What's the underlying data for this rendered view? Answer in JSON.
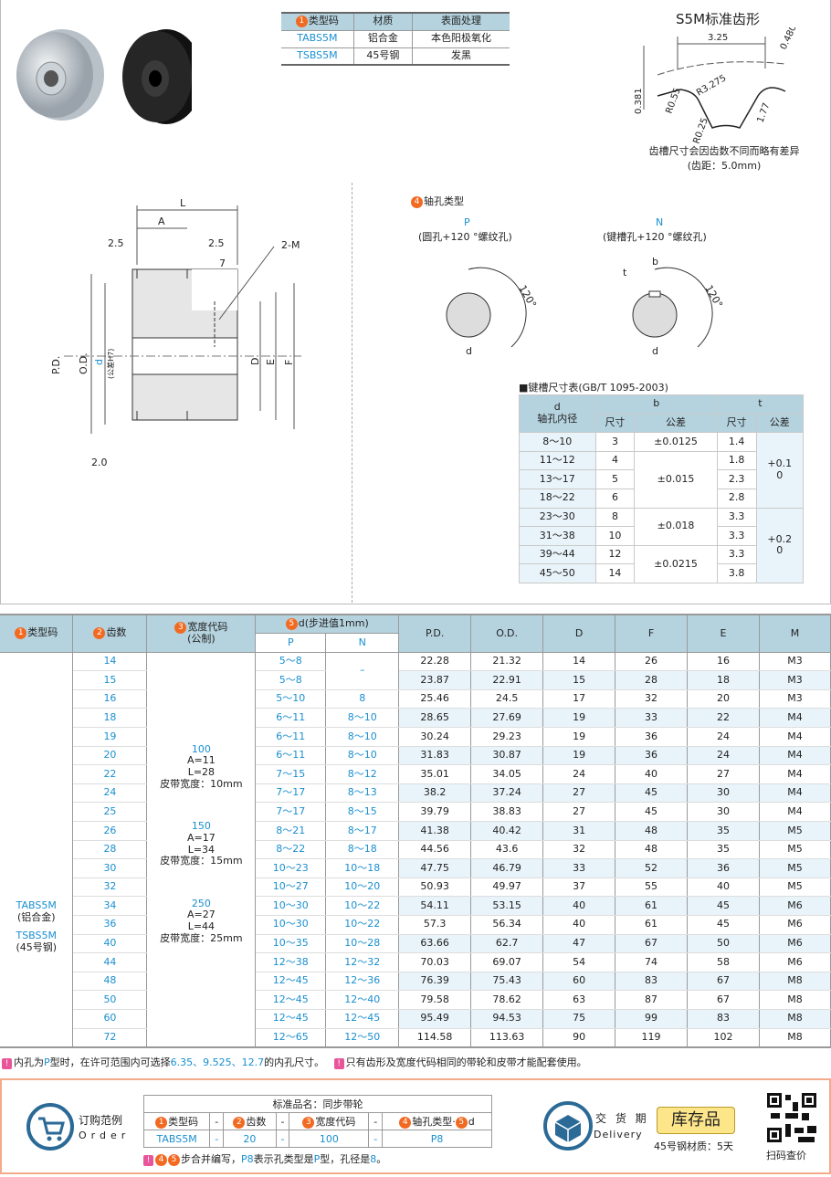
{
  "materials": {
    "headers": [
      "类型码",
      "材质",
      "表面处理"
    ],
    "rows": [
      [
        "TABS5M",
        "铝合金",
        "本色阳极氧化"
      ],
      [
        "TSBS5M",
        "45号钢",
        "发黑"
      ]
    ]
  },
  "tooth_profile": {
    "title": "S5M标准齿形",
    "dims": [
      "3.25",
      "0.480",
      "R3.275",
      "R0.55",
      "0.381",
      "1.77",
      "R0.25"
    ],
    "note1": "齿槽尺寸会因齿数不同而略有差异",
    "note2": "(齿距：5.0mm)"
  },
  "drawing": {
    "L": "L",
    "A": "A",
    "d25a": "2.5",
    "d25b": "2.5",
    "d7": "7",
    "m2": "2-M",
    "pd": "P.D.",
    "od": "O.D.",
    "d": "d",
    "h7": "(公差H7)",
    "D": "D",
    "E": "E",
    "F": "F",
    "d20": "2.0"
  },
  "bore": {
    "title": "轴孔类型",
    "p": "P",
    "p_desc": "(圆孔+120 °螺纹孔)",
    "n": "N",
    "n_desc": "(键槽孔+120 °螺纹孔)",
    "angle": "120°",
    "d": "d",
    "b": "b",
    "t": "t"
  },
  "keyway": {
    "title": "■键槽尺寸表(GB/T 1095-2003)",
    "h_d": "d",
    "h_dsub": "轴孔内径",
    "h_b": "b",
    "h_t": "t",
    "h_size": "尺寸",
    "h_tol": "公差",
    "rows": [
      [
        "8～10",
        "3",
        "1.4"
      ],
      [
        "11～12",
        "4",
        "1.8"
      ],
      [
        "13～17",
        "5",
        "2.3"
      ],
      [
        "18～22",
        "6",
        "2.8"
      ],
      [
        "23～30",
        "8",
        "3.3"
      ],
      [
        "31～38",
        "10",
        "3.3"
      ],
      [
        "39～44",
        "12",
        "3.3"
      ],
      [
        "45～50",
        "14",
        "3.8"
      ]
    ],
    "b_tol": [
      "±0.0125",
      "±0.015",
      "±0.018",
      "±0.0215"
    ],
    "t_tol": [
      "+0.1\n0",
      "+0.2\n0"
    ]
  },
  "main": {
    "headers": {
      "type": "类型码",
      "teeth": "齿数",
      "width": "宽度代码",
      "width_sub": "(公制)",
      "d": "d(步进值1mm)",
      "p": "P",
      "n": "N",
      "pd": "P.D.",
      "od": "O.D.",
      "D": "D",
      "F": "F",
      "E": "E",
      "M": "M"
    },
    "type_cell": [
      "TABS5M",
      "(铝合金)",
      "TSBS5M",
      "(45号钢)"
    ],
    "width_groups": [
      [
        "100",
        "A=11",
        "L=28",
        "皮带宽度：10mm"
      ],
      [
        "150",
        "A=17",
        "L=34",
        "皮带宽度：15mm"
      ],
      [
        "250",
        "A=27",
        "L=44",
        "皮带宽度：25mm"
      ]
    ],
    "rows": [
      [
        "14",
        "5～8",
        "–",
        "22.28",
        "21.32",
        "14",
        "26",
        "16",
        "M3"
      ],
      [
        "15",
        "5～8",
        "",
        "23.87",
        "22.91",
        "15",
        "28",
        "18",
        "M3"
      ],
      [
        "16",
        "5～10",
        "8",
        "25.46",
        "24.5",
        "17",
        "32",
        "20",
        "M3"
      ],
      [
        "18",
        "6～11",
        "8～10",
        "28.65",
        "27.69",
        "19",
        "33",
        "22",
        "M4"
      ],
      [
        "19",
        "6～11",
        "8～10",
        "30.24",
        "29.23",
        "19",
        "36",
        "24",
        "M4"
      ],
      [
        "20",
        "6～11",
        "8～10",
        "31.83",
        "30.87",
        "19",
        "36",
        "24",
        "M4"
      ],
      [
        "22",
        "7～15",
        "8～12",
        "35.01",
        "34.05",
        "24",
        "40",
        "27",
        "M4"
      ],
      [
        "24",
        "7～17",
        "8～13",
        "38.2",
        "37.24",
        "27",
        "45",
        "30",
        "M4"
      ],
      [
        "25",
        "7～17",
        "8～15",
        "39.79",
        "38.83",
        "27",
        "45",
        "30",
        "M4"
      ],
      [
        "26",
        "8～21",
        "8～17",
        "41.38",
        "40.42",
        "31",
        "48",
        "35",
        "M5"
      ],
      [
        "28",
        "8～22",
        "8～18",
        "44.56",
        "43.6",
        "32",
        "48",
        "35",
        "M5"
      ],
      [
        "30",
        "10～23",
        "10～18",
        "47.75",
        "46.79",
        "33",
        "52",
        "36",
        "M5"
      ],
      [
        "32",
        "10～27",
        "10～20",
        "50.93",
        "49.97",
        "37",
        "55",
        "40",
        "M5"
      ],
      [
        "34",
        "10～30",
        "10～22",
        "54.11",
        "53.15",
        "40",
        "61",
        "45",
        "M6"
      ],
      [
        "36",
        "10～30",
        "10～22",
        "57.3",
        "56.34",
        "40",
        "61",
        "45",
        "M6"
      ],
      [
        "40",
        "10～35",
        "10～28",
        "63.66",
        "62.7",
        "47",
        "67",
        "50",
        "M6"
      ],
      [
        "44",
        "12～38",
        "12～32",
        "70.03",
        "69.07",
        "54",
        "74",
        "58",
        "M6"
      ],
      [
        "48",
        "12～45",
        "12～36",
        "76.39",
        "75.43",
        "60",
        "83",
        "67",
        "M8"
      ],
      [
        "50",
        "12～45",
        "12～40",
        "79.58",
        "78.62",
        "63",
        "87",
        "67",
        "M8"
      ],
      [
        "60",
        "12～45",
        "12～45",
        "95.49",
        "94.53",
        "75",
        "99",
        "83",
        "M8"
      ],
      [
        "72",
        "12～65",
        "12～50",
        "114.58",
        "113.63",
        "90",
        "119",
        "102",
        "M8"
      ]
    ]
  },
  "notes": {
    "n1a": "内孔为",
    "n1b": "P",
    "n1c": "型时，在许可范围内可选择",
    "n1d": "6.35、9.525、12.7",
    "n1e": "的内孔尺寸。",
    "n2": "只有齿形及宽度代码相同的带轮和皮带才能配套使用。"
  },
  "order": {
    "label_cn": "订购范例",
    "label_en": "Order",
    "title": "标准品名：同步带轮",
    "h": [
      "类型码",
      "-",
      "齿数",
      "-",
      "宽度代码",
      "-",
      "轴孔类型·",
      "d"
    ],
    "v": [
      "TABS5M",
      "-",
      "20",
      "-",
      "100",
      "-",
      "P8"
    ],
    "note_a": "步合并编写，",
    "note_b": "P8",
    "note_c": "表示孔类型是",
    "note_d": "P",
    "note_e": "型，孔径是",
    "note_f": "8",
    "note_g": "。"
  },
  "delivery": {
    "label_cn": "交 货 期",
    "label_en": "Delivery",
    "badge": "库存品",
    "steel": "45号钢材质：5天",
    "qr": "扫码查价"
  },
  "colors": {
    "accent": "#1a8fd0",
    "header": "#b5d3df",
    "badge": "#f26a21",
    "stripe": "#e9f4fa",
    "order_border": "#f3a98a"
  }
}
